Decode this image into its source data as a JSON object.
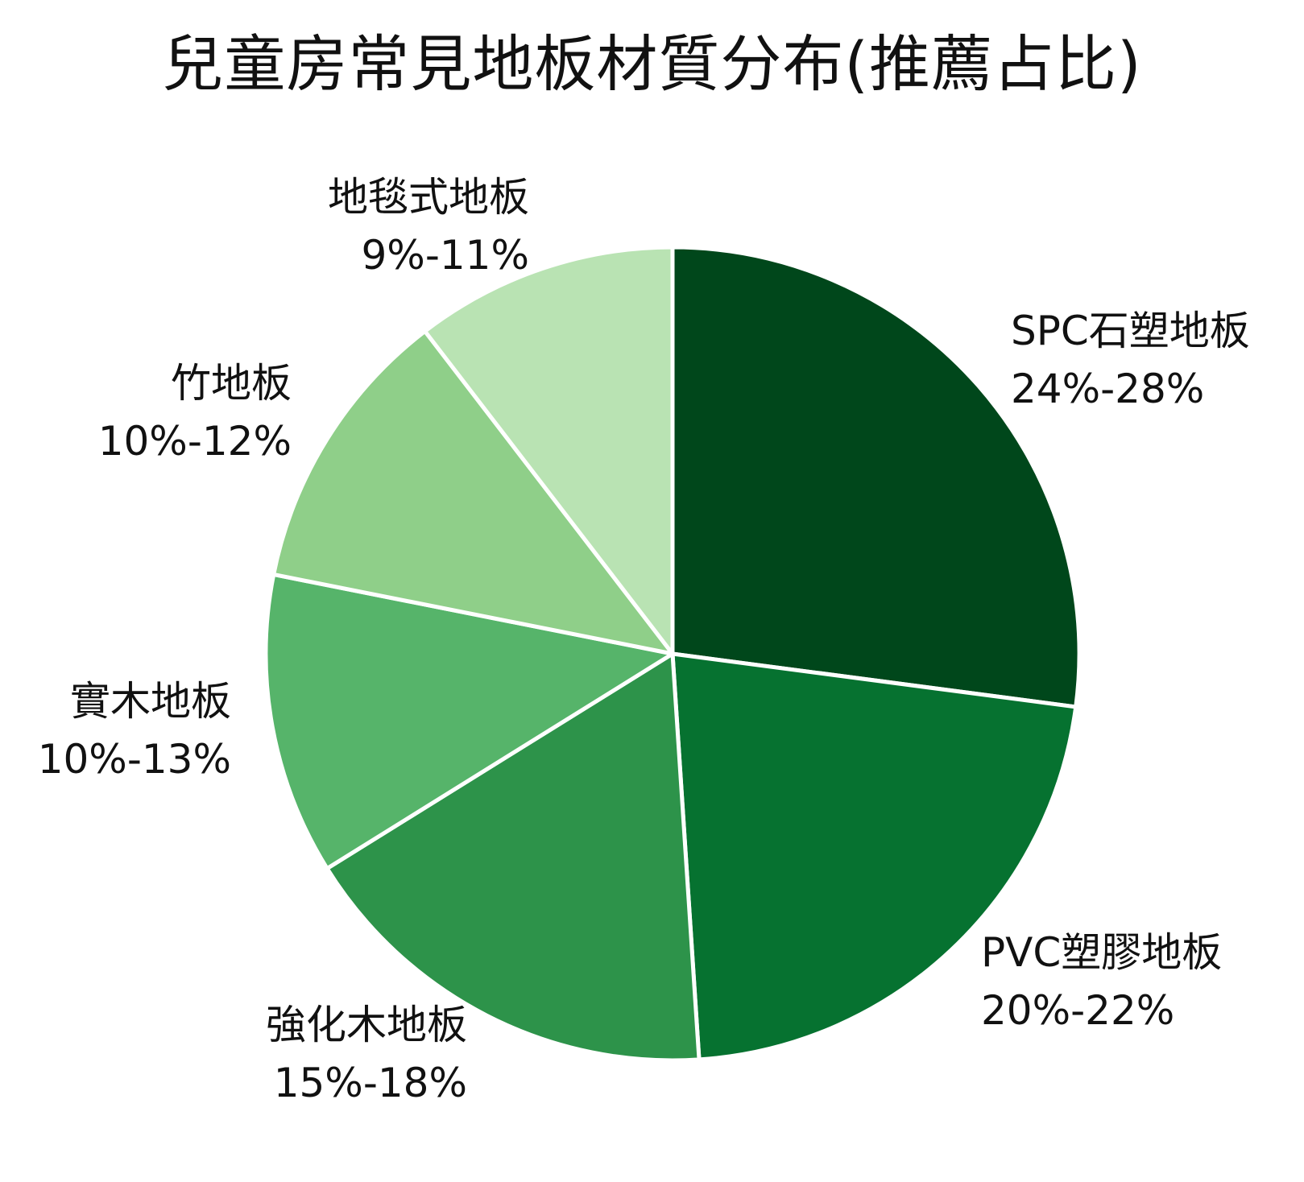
{
  "chart_data": {
    "type": "pie",
    "title": "兒童房常見地板材質分布(推薦占比)",
    "slices": [
      {
        "name": "SPC石塑地板",
        "range": "24%-28%",
        "value": 26,
        "color": "#00471b"
      },
      {
        "name": "PVC塑膠地板",
        "range": "20%-22%",
        "value": 21,
        "color": "#067230"
      },
      {
        "name": "強化木地板",
        "range": "15%-18%",
        "value": 16.5,
        "color": "#2d934a"
      },
      {
        "name": "實木地板",
        "range": "10%-13%",
        "value": 11.5,
        "color": "#56b46a"
      },
      {
        "name": "竹地板",
        "range": "10%-12%",
        "value": 11,
        "color": "#8fcf89"
      },
      {
        "name": "地毯式地板",
        "range": "9%-11%",
        "value": 10,
        "color": "#b9e3b3"
      }
    ]
  }
}
